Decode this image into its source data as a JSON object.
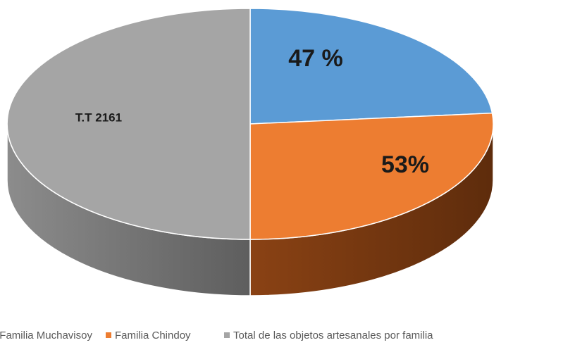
{
  "chart_data": {
    "type": "pie3d",
    "categories": [
      "Familia Muchavisoy",
      "Familia Chindoy",
      "Total de las objetos artesanales por familia"
    ],
    "values": [
      1016,
      1145,
      2161
    ],
    "value_labels": [
      "47 %",
      "53%",
      "T.T 2161"
    ],
    "colors": [
      "#5b9bd5",
      "#ed7d31",
      "#a5a5a5"
    ],
    "legend": "bottom"
  }
}
